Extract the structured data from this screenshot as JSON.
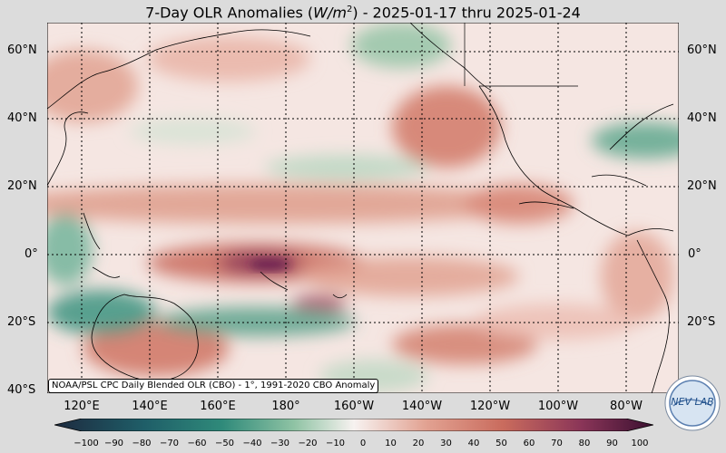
{
  "title": {
    "prefix": "7-Day OLR Anomalies (",
    "unit_w": "W",
    "unit_m": "/m",
    "unit_exp": "2",
    "suffix": ") - 2025-01-17 thru 2025-01-24"
  },
  "lat_labels": [
    "60°N",
    "40°N",
    "20°N",
    "0°",
    "20°S",
    "40°S"
  ],
  "lon_labels": [
    "120°E",
    "140°E",
    "160°E",
    "180°",
    "160°W",
    "140°W",
    "120°W",
    "100°W",
    "80°W"
  ],
  "credit": "NOAA/PSL CPC Daily Blended OLR (CBO) - 1°, 1991-2020 CBO Anomaly",
  "colorbar_ticks": [
    "−100",
    "−90",
    "−80",
    "−70",
    "−60",
    "−50",
    "−40",
    "−30",
    "−20",
    "−10",
    "0",
    "10",
    "20",
    "30",
    "40",
    "50",
    "60",
    "70",
    "80",
    "90",
    "100"
  ],
  "colors": {
    "neg_strong": "#1d3b4a",
    "neg": "#2f8a7a",
    "neg_light": "#8fc3a4",
    "neutral": "#f7ecea",
    "pos_light": "#e2a292",
    "pos": "#c96b5d",
    "pos_strong": "#7a2a55"
  },
  "logo_text": "NEV LAB"
}
